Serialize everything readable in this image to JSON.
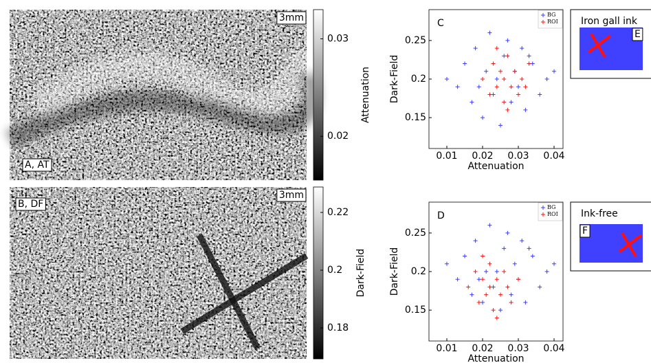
{
  "chart_data": [
    {
      "type": "image",
      "label": "A, AT",
      "scale_label": "3mm",
      "colorbar_label": "Attenuation",
      "clim": [
        0.0155,
        0.033
      ],
      "cticks": [
        0.02,
        0.03
      ]
    },
    {
      "type": "image",
      "label": "B, DF",
      "scale_label": "3mm",
      "colorbar_label": "Dark-Field",
      "clim": [
        0.1693,
        0.2288
      ],
      "cticks": [
        0.18,
        0.2,
        0.22
      ]
    },
    {
      "type": "scatter",
      "label": "C",
      "xlabel": "Attenuation",
      "ylabel": "Dark-Field",
      "xlim": [
        0.005,
        0.0425
      ],
      "ylim": [
        0.11,
        0.29
      ],
      "xticks": [
        0.01,
        0.02,
        0.03,
        0.04
      ],
      "yticks": [
        0.15,
        0.2,
        0.25
      ],
      "series": [
        {
          "name": "BG",
          "color": "#3b3bff",
          "x": [
            0.01,
            0.013,
            0.015,
            0.017,
            0.018,
            0.02,
            0.021,
            0.022,
            0.023,
            0.024,
            0.025,
            0.026,
            0.027,
            0.028,
            0.029,
            0.03,
            0.031,
            0.032,
            0.034,
            0.036,
            0.038,
            0.04,
            0.019,
            0.033
          ],
          "values": [
            0.2,
            0.19,
            0.22,
            0.17,
            0.24,
            0.15,
            0.21,
            0.26,
            0.18,
            0.2,
            0.14,
            0.23,
            0.25,
            0.17,
            0.21,
            0.19,
            0.24,
            0.16,
            0.22,
            0.18,
            0.2,
            0.21,
            0.19,
            0.23
          ]
        },
        {
          "name": "ROI",
          "color": "#ff1010",
          "x": [
            0.02,
            0.022,
            0.023,
            0.024,
            0.025,
            0.026,
            0.026,
            0.027,
            0.028,
            0.029,
            0.03,
            0.031,
            0.033,
            0.024,
            0.027,
            0.032
          ],
          "values": [
            0.2,
            0.18,
            0.22,
            0.19,
            0.21,
            0.2,
            0.17,
            0.23,
            0.19,
            0.21,
            0.18,
            0.2,
            0.22,
            0.24,
            0.16,
            0.19
          ]
        }
      ]
    },
    {
      "type": "scatter",
      "label": "D",
      "xlabel": "Attenuation",
      "ylabel": "Dark-Field",
      "xlim": [
        0.005,
        0.0425
      ],
      "ylim": [
        0.11,
        0.29
      ],
      "xticks": [
        0.01,
        0.02,
        0.03,
        0.04
      ],
      "yticks": [
        0.15,
        0.2,
        0.25
      ],
      "series": [
        {
          "name": "BG",
          "color": "#3b3bff",
          "x": [
            0.01,
            0.013,
            0.015,
            0.017,
            0.018,
            0.02,
            0.021,
            0.022,
            0.023,
            0.024,
            0.025,
            0.026,
            0.027,
            0.028,
            0.029,
            0.03,
            0.031,
            0.032,
            0.034,
            0.036,
            0.038,
            0.04,
            0.019,
            0.033
          ],
          "values": [
            0.21,
            0.19,
            0.22,
            0.17,
            0.24,
            0.16,
            0.2,
            0.26,
            0.18,
            0.2,
            0.15,
            0.23,
            0.25,
            0.17,
            0.21,
            0.19,
            0.24,
            0.16,
            0.22,
            0.18,
            0.2,
            0.21,
            0.19,
            0.23
          ]
        },
        {
          "name": "ROI",
          "color": "#ff1010",
          "x": [
            0.016,
            0.018,
            0.019,
            0.02,
            0.021,
            0.022,
            0.022,
            0.023,
            0.024,
            0.025,
            0.026,
            0.027,
            0.028,
            0.02,
            0.024,
            0.03
          ],
          "values": [
            0.18,
            0.2,
            0.16,
            0.19,
            0.17,
            0.18,
            0.21,
            0.15,
            0.19,
            0.17,
            0.2,
            0.18,
            0.16,
            0.22,
            0.14,
            0.19
          ]
        }
      ]
    },
    {
      "type": "inset",
      "title": "Iron gall ink",
      "label": "E"
    },
    {
      "type": "inset",
      "title": "Ink-free",
      "label": "F"
    }
  ]
}
